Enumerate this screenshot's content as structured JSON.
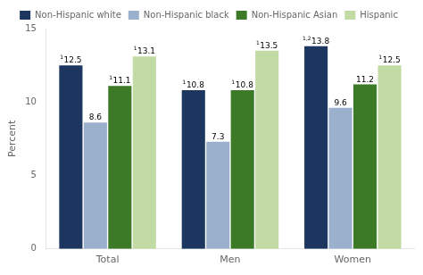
{
  "chart_data": {
    "type": "bar",
    "categories": [
      "Total",
      "Men",
      "Women"
    ],
    "series": [
      {
        "name": "Non-Hispanic white",
        "color": "#1c3660",
        "values": [
          12.5,
          10.8,
          13.8
        ],
        "footnotes": [
          "1",
          "1",
          "1,2"
        ]
      },
      {
        "name": "Non-Hispanic black",
        "color": "#9ab0cc",
        "values": [
          8.6,
          7.3,
          9.6
        ],
        "footnotes": [
          null,
          null,
          null
        ]
      },
      {
        "name": "Non-Hispanic Asian",
        "color": "#3d7a28",
        "values": [
          11.1,
          10.8,
          11.2
        ],
        "footnotes": [
          "1",
          "1",
          null
        ]
      },
      {
        "name": "Hispanic",
        "color": "#c2dba4",
        "values": [
          13.1,
          13.5,
          12.5
        ],
        "footnotes": [
          "1",
          "1",
          "1"
        ]
      }
    ],
    "ylabel": "Percent",
    "ylim": [
      0,
      15
    ],
    "yticks": [
      0,
      5,
      10,
      15
    ],
    "grid": false,
    "data_labels": true,
    "legend": "top"
  }
}
